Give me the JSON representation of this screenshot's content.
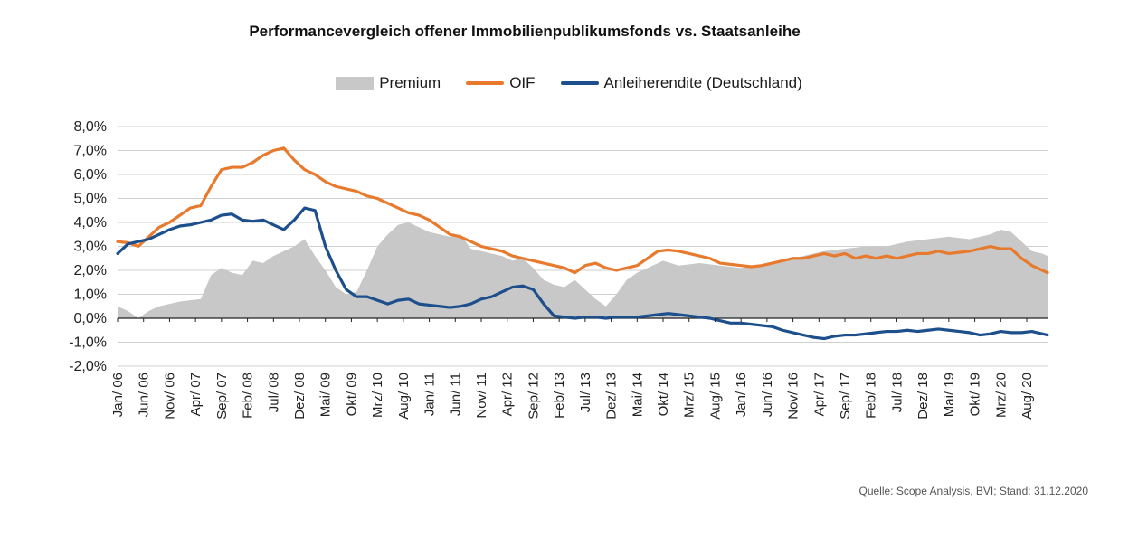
{
  "chart_data": {
    "type": "line",
    "title": "Performancevergleich offener Immobilienpublikumsfonds vs. Staatsanleihe",
    "source": "Quelle: Scope Analysis, BVI; Stand: 31.12.2020",
    "ylim": [
      -2.0,
      8.0
    ],
    "y_ticks": [
      "8,0%",
      "7,0%",
      "6,0%",
      "5,0%",
      "4,0%",
      "3,0%",
      "2,0%",
      "1,0%",
      "0,0%",
      "-1,0%",
      "-2,0%"
    ],
    "y_tick_values": [
      8,
      7,
      6,
      5,
      4,
      3,
      2,
      1,
      0,
      -1,
      -2
    ],
    "x_tick_labels": [
      "Jan/ 06",
      "Jun/ 06",
      "Nov/ 06",
      "Apr/ 07",
      "Sep/ 07",
      "Feb/ 08",
      "Jul/ 08",
      "Dez/ 08",
      "Mai/ 09",
      "Okt/ 09",
      "Mrz/ 10",
      "Aug/ 10",
      "Jan/ 11",
      "Jun/ 11",
      "Nov/ 11",
      "Apr/ 12",
      "Sep/ 12",
      "Feb/ 13",
      "Jul/ 13",
      "Dez/ 13",
      "Mai/ 14",
      "Okt/ 14",
      "Mrz/ 15",
      "Aug/ 15",
      "Jan/ 16",
      "Jun/ 16",
      "Nov/ 16",
      "Apr/ 17",
      "Sep/ 17",
      "Feb/ 18",
      "Jul/ 18",
      "Dez/ 18",
      "Mai/ 19",
      "Okt/ 19",
      "Mrz/ 20",
      "Aug/ 20"
    ],
    "x_range_months": [
      0,
      179
    ],
    "grid": true,
    "legend_position": "top",
    "series": [
      {
        "name": "Premium",
        "type": "area",
        "color": "#c8c8c8",
        "points": [
          [
            0,
            0.5
          ],
          [
            2,
            0.3
          ],
          [
            4,
            0.0
          ],
          [
            6,
            0.3
          ],
          [
            8,
            0.5
          ],
          [
            10,
            0.6
          ],
          [
            12,
            0.7
          ],
          [
            14,
            0.75
          ],
          [
            16,
            0.8
          ],
          [
            18,
            1.8
          ],
          [
            20,
            2.1
          ],
          [
            22,
            1.9
          ],
          [
            24,
            1.8
          ],
          [
            26,
            2.4
          ],
          [
            28,
            2.3
          ],
          [
            30,
            2.6
          ],
          [
            32,
            2.8
          ],
          [
            34,
            3.0
          ],
          [
            36,
            3.3
          ],
          [
            38,
            2.6
          ],
          [
            40,
            2.0
          ],
          [
            42,
            1.3
          ],
          [
            44,
            1.0
          ],
          [
            46,
            1.1
          ],
          [
            48,
            2.0
          ],
          [
            50,
            3.0
          ],
          [
            52,
            3.5
          ],
          [
            54,
            3.9
          ],
          [
            56,
            4.0
          ],
          [
            58,
            3.8
          ],
          [
            60,
            3.6
          ],
          [
            62,
            3.5
          ],
          [
            64,
            3.4
          ],
          [
            66,
            3.5
          ],
          [
            68,
            2.9
          ],
          [
            70,
            2.8
          ],
          [
            72,
            2.7
          ],
          [
            74,
            2.6
          ],
          [
            76,
            2.4
          ],
          [
            78,
            2.5
          ],
          [
            80,
            2.1
          ],
          [
            82,
            1.6
          ],
          [
            84,
            1.4
          ],
          [
            86,
            1.3
          ],
          [
            88,
            1.6
          ],
          [
            90,
            1.2
          ],
          [
            92,
            0.8
          ],
          [
            94,
            0.5
          ],
          [
            96,
            1.0
          ],
          [
            98,
            1.6
          ],
          [
            100,
            1.9
          ],
          [
            102,
            2.1
          ],
          [
            105,
            2.4
          ],
          [
            108,
            2.2
          ],
          [
            112,
            2.3
          ],
          [
            116,
            2.2
          ],
          [
            120,
            2.1
          ],
          [
            124,
            2.2
          ],
          [
            128,
            2.4
          ],
          [
            132,
            2.6
          ],
          [
            136,
            2.8
          ],
          [
            140,
            2.9
          ],
          [
            144,
            3.0
          ],
          [
            148,
            3.0
          ],
          [
            152,
            3.2
          ],
          [
            156,
            3.3
          ],
          [
            160,
            3.4
          ],
          [
            164,
            3.3
          ],
          [
            168,
            3.5
          ],
          [
            170,
            3.7
          ],
          [
            172,
            3.6
          ],
          [
            174,
            3.2
          ],
          [
            176,
            2.8
          ],
          [
            178,
            2.7
          ],
          [
            179,
            2.6
          ]
        ]
      },
      {
        "name": "OIF",
        "type": "line",
        "color": "#e87a2e",
        "points": [
          [
            0,
            3.2
          ],
          [
            2,
            3.15
          ],
          [
            4,
            3.0
          ],
          [
            6,
            3.4
          ],
          [
            8,
            3.8
          ],
          [
            10,
            4.0
          ],
          [
            12,
            4.3
          ],
          [
            14,
            4.6
          ],
          [
            16,
            4.7
          ],
          [
            18,
            5.5
          ],
          [
            20,
            6.2
          ],
          [
            22,
            6.3
          ],
          [
            24,
            6.3
          ],
          [
            26,
            6.5
          ],
          [
            28,
            6.8
          ],
          [
            30,
            7.0
          ],
          [
            32,
            7.1
          ],
          [
            34,
            6.6
          ],
          [
            36,
            6.2
          ],
          [
            38,
            6.0
          ],
          [
            40,
            5.7
          ],
          [
            42,
            5.5
          ],
          [
            44,
            5.4
          ],
          [
            46,
            5.3
          ],
          [
            48,
            5.1
          ],
          [
            50,
            5.0
          ],
          [
            52,
            4.8
          ],
          [
            54,
            4.6
          ],
          [
            56,
            4.4
          ],
          [
            58,
            4.3
          ],
          [
            60,
            4.1
          ],
          [
            62,
            3.8
          ],
          [
            64,
            3.5
          ],
          [
            66,
            3.4
          ],
          [
            68,
            3.2
          ],
          [
            70,
            3.0
          ],
          [
            72,
            2.9
          ],
          [
            74,
            2.8
          ],
          [
            76,
            2.6
          ],
          [
            78,
            2.5
          ],
          [
            80,
            2.4
          ],
          [
            82,
            2.3
          ],
          [
            84,
            2.2
          ],
          [
            86,
            2.1
          ],
          [
            88,
            1.9
          ],
          [
            90,
            2.2
          ],
          [
            92,
            2.3
          ],
          [
            94,
            2.1
          ],
          [
            96,
            2.0
          ],
          [
            98,
            2.1
          ],
          [
            100,
            2.2
          ],
          [
            102,
            2.5
          ],
          [
            104,
            2.8
          ],
          [
            106,
            2.85
          ],
          [
            108,
            2.8
          ],
          [
            110,
            2.7
          ],
          [
            112,
            2.6
          ],
          [
            114,
            2.5
          ],
          [
            116,
            2.3
          ],
          [
            118,
            2.25
          ],
          [
            120,
            2.2
          ],
          [
            122,
            2.15
          ],
          [
            124,
            2.2
          ],
          [
            126,
            2.3
          ],
          [
            128,
            2.4
          ],
          [
            130,
            2.5
          ],
          [
            132,
            2.5
          ],
          [
            134,
            2.6
          ],
          [
            136,
            2.7
          ],
          [
            138,
            2.6
          ],
          [
            140,
            2.7
          ],
          [
            142,
            2.5
          ],
          [
            144,
            2.6
          ],
          [
            146,
            2.5
          ],
          [
            148,
            2.6
          ],
          [
            150,
            2.5
          ],
          [
            152,
            2.6
          ],
          [
            154,
            2.7
          ],
          [
            156,
            2.7
          ],
          [
            158,
            2.8
          ],
          [
            160,
            2.7
          ],
          [
            162,
            2.75
          ],
          [
            164,
            2.8
          ],
          [
            166,
            2.9
          ],
          [
            168,
            3.0
          ],
          [
            170,
            2.9
          ],
          [
            172,
            2.9
          ],
          [
            174,
            2.5
          ],
          [
            176,
            2.2
          ],
          [
            178,
            2.0
          ],
          [
            179,
            1.9
          ]
        ]
      },
      {
        "name": "Anleiherendite (Deutschland)",
        "type": "line",
        "color": "#1d4f8c",
        "points": [
          [
            0,
            2.7
          ],
          [
            2,
            3.1
          ],
          [
            4,
            3.2
          ],
          [
            6,
            3.3
          ],
          [
            8,
            3.5
          ],
          [
            10,
            3.7
          ],
          [
            12,
            3.85
          ],
          [
            14,
            3.9
          ],
          [
            16,
            4.0
          ],
          [
            18,
            4.1
          ],
          [
            20,
            4.3
          ],
          [
            22,
            4.35
          ],
          [
            24,
            4.1
          ],
          [
            26,
            4.05
          ],
          [
            28,
            4.1
          ],
          [
            30,
            3.9
          ],
          [
            32,
            3.7
          ],
          [
            34,
            4.1
          ],
          [
            36,
            4.6
          ],
          [
            38,
            4.5
          ],
          [
            40,
            3.0
          ],
          [
            42,
            2.0
          ],
          [
            44,
            1.2
          ],
          [
            46,
            0.9
          ],
          [
            48,
            0.9
          ],
          [
            50,
            0.75
          ],
          [
            52,
            0.6
          ],
          [
            54,
            0.75
          ],
          [
            56,
            0.8
          ],
          [
            58,
            0.6
          ],
          [
            60,
            0.55
          ],
          [
            62,
            0.5
          ],
          [
            64,
            0.45
          ],
          [
            66,
            0.5
          ],
          [
            68,
            0.6
          ],
          [
            70,
            0.8
          ],
          [
            72,
            0.9
          ],
          [
            74,
            1.1
          ],
          [
            76,
            1.3
          ],
          [
            78,
            1.35
          ],
          [
            80,
            1.2
          ],
          [
            82,
            0.6
          ],
          [
            84,
            0.1
          ],
          [
            86,
            0.05
          ],
          [
            88,
            0.0
          ],
          [
            90,
            0.05
          ],
          [
            92,
            0.05
          ],
          [
            94,
            0.0
          ],
          [
            96,
            0.05
          ],
          [
            98,
            0.05
          ],
          [
            100,
            0.05
          ],
          [
            102,
            0.1
          ],
          [
            104,
            0.15
          ],
          [
            106,
            0.2
          ],
          [
            108,
            0.15
          ],
          [
            110,
            0.1
          ],
          [
            112,
            0.05
          ],
          [
            114,
            0.0
          ],
          [
            116,
            -0.1
          ],
          [
            118,
            -0.2
          ],
          [
            120,
            -0.2
          ],
          [
            122,
            -0.25
          ],
          [
            124,
            -0.3
          ],
          [
            126,
            -0.35
          ],
          [
            128,
            -0.5
          ],
          [
            130,
            -0.6
          ],
          [
            132,
            -0.7
          ],
          [
            134,
            -0.8
          ],
          [
            136,
            -0.85
          ],
          [
            138,
            -0.75
          ],
          [
            140,
            -0.7
          ],
          [
            142,
            -0.7
          ],
          [
            144,
            -0.65
          ],
          [
            146,
            -0.6
          ],
          [
            148,
            -0.55
          ],
          [
            150,
            -0.55
          ],
          [
            152,
            -0.5
          ],
          [
            154,
            -0.55
          ],
          [
            156,
            -0.5
          ],
          [
            158,
            -0.45
          ],
          [
            160,
            -0.5
          ],
          [
            162,
            -0.55
          ],
          [
            164,
            -0.6
          ],
          [
            166,
            -0.7
          ],
          [
            168,
            -0.65
          ],
          [
            170,
            -0.55
          ],
          [
            172,
            -0.6
          ],
          [
            174,
            -0.6
          ],
          [
            176,
            -0.55
          ],
          [
            178,
            -0.65
          ],
          [
            179,
            -0.7
          ]
        ]
      }
    ]
  }
}
